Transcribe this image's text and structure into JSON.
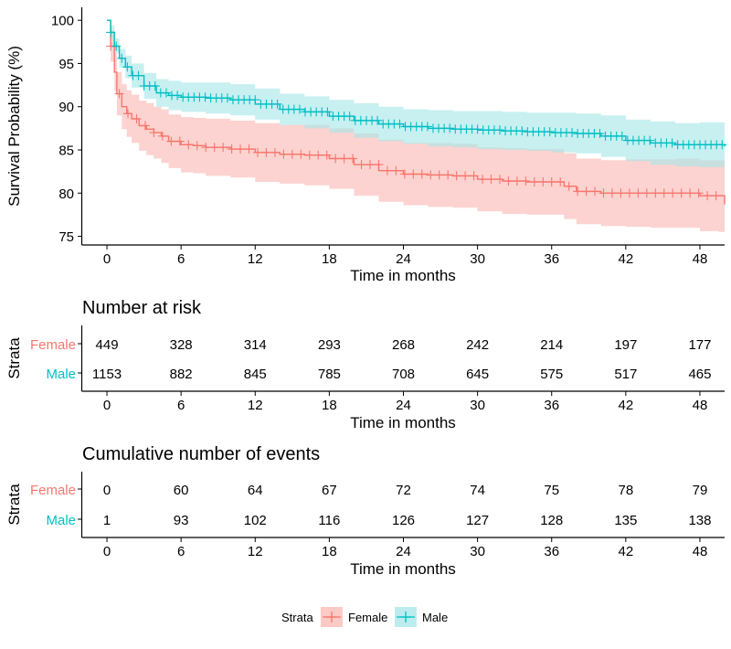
{
  "chart_data": [
    {
      "type": "line",
      "subtype": "kaplan-meier survival curve with confidence bands and censor marks",
      "xlabel": "Time in months",
      "ylabel": "Survival Probability (%)",
      "xlim": [
        -2,
        50
      ],
      "ylim": [
        74,
        101.5
      ],
      "x_ticks": [
        0,
        6,
        12,
        18,
        24,
        30,
        36,
        42,
        48
      ],
      "y_ticks": [
        75,
        80,
        85,
        90,
        95,
        100
      ],
      "grid": false,
      "series": [
        {
          "name": "Female",
          "color": "#F8766D",
          "band_color": "#FAB8B3",
          "x": [
            0,
            0.3,
            0.6,
            0.8,
            1.2,
            1.6,
            2,
            2.6,
            3.2,
            3.8,
            4.4,
            5,
            6,
            7,
            8,
            10,
            12,
            14,
            16,
            18,
            20,
            22,
            24,
            26,
            28,
            30,
            32,
            34,
            36,
            37,
            38,
            40,
            42,
            44,
            46,
            48,
            49.5,
            50
          ],
          "y": [
            100,
            97,
            94,
            91.5,
            90,
            89.2,
            88.6,
            87.8,
            87.4,
            87,
            86.6,
            86,
            85.6,
            85.5,
            85.3,
            85.1,
            84.7,
            84.5,
            84.4,
            84,
            83.3,
            82.6,
            82.2,
            82.1,
            82,
            81.6,
            81.4,
            81.3,
            81.3,
            80.8,
            80.2,
            80,
            80,
            80,
            80,
            79.7,
            79.7,
            78.7
          ],
          "lower": [
            100,
            95.2,
            91.8,
            89,
            87.4,
            86.5,
            85.8,
            84.9,
            84.4,
            84,
            83.5,
            82.9,
            82.4,
            82.3,
            82,
            81.8,
            81.3,
            81.1,
            80.9,
            80.5,
            79.7,
            79,
            78.6,
            78.4,
            78.3,
            77.9,
            77.6,
            77.5,
            77.5,
            77,
            76.4,
            76.2,
            76.1,
            76,
            76,
            75.6,
            75.5,
            74.4
          ],
          "upper": [
            100,
            98.8,
            96.2,
            94,
            92.6,
            91.9,
            91.4,
            90.7,
            90.4,
            90,
            89.7,
            89.1,
            88.8,
            88.7,
            88.6,
            88.4,
            88.1,
            87.9,
            87.9,
            87.5,
            86.9,
            86.2,
            85.8,
            85.8,
            85.7,
            85.3,
            85.2,
            85.1,
            85.1,
            84.6,
            84,
            83.8,
            83.9,
            83.9,
            84,
            83.8,
            83.8,
            83
          ]
        },
        {
          "name": "Male",
          "color": "#00BFC4",
          "band_color": "#A6E6E8",
          "x": [
            0,
            0.3,
            0.6,
            1,
            1.5,
            2,
            3,
            4,
            5,
            6,
            8,
            10,
            12,
            14,
            16,
            18,
            20,
            22,
            24,
            26,
            28,
            30,
            32,
            34,
            36,
            38,
            40,
            42,
            44,
            46,
            48,
            50
          ],
          "y": [
            100,
            98.6,
            97,
            95.6,
            94.6,
            93.6,
            92.4,
            91.6,
            91.3,
            91.1,
            91,
            90.8,
            90.3,
            89.7,
            89.4,
            88.9,
            88.4,
            88,
            87.7,
            87.5,
            87.4,
            87.3,
            87.2,
            87.1,
            87,
            86.9,
            86.6,
            86.1,
            85.8,
            85.6,
            85.6,
            85.4
          ],
          "lower": [
            100,
            97.8,
            96.2,
            94.5,
            93.3,
            92.2,
            90.9,
            90,
            89.6,
            89.4,
            89.2,
            89,
            88.5,
            87.9,
            87.5,
            87,
            86.4,
            86,
            85.7,
            85.4,
            85.3,
            85.1,
            85,
            84.9,
            84.7,
            84.6,
            84.2,
            83.7,
            83.3,
            83.1,
            83,
            82.7
          ],
          "upper": [
            100,
            99.4,
            97.9,
            96.7,
            95.9,
            95,
            93.9,
            93.2,
            93,
            92.8,
            92.8,
            92.6,
            92.1,
            91.5,
            91.2,
            90.8,
            90.4,
            90,
            89.7,
            89.6,
            89.5,
            89.5,
            89.4,
            89.3,
            89.3,
            89.2,
            89,
            88.5,
            88.3,
            88.1,
            88.2,
            88.1
          ]
        }
      ]
    },
    {
      "type": "table",
      "title": "Number at risk",
      "xlabel": "Time in months",
      "ylabel": "Strata",
      "x_ticks": [
        0,
        6,
        12,
        18,
        24,
        30,
        36,
        42,
        48
      ],
      "rows": [
        {
          "name": "Female",
          "color": "#F8766D",
          "values": [
            449,
            328,
            314,
            293,
            268,
            242,
            214,
            197,
            177
          ]
        },
        {
          "name": "Male",
          "color": "#00BFC4",
          "values": [
            1153,
            882,
            845,
            785,
            708,
            645,
            575,
            517,
            465
          ]
        }
      ]
    },
    {
      "type": "table",
      "title": "Cumulative number of events",
      "xlabel": "Time in months",
      "ylabel": "Strata",
      "x_ticks": [
        0,
        6,
        12,
        18,
        24,
        30,
        36,
        42,
        48
      ],
      "rows": [
        {
          "name": "Female",
          "color": "#F8766D",
          "values": [
            0,
            60,
            64,
            67,
            72,
            74,
            75,
            78,
            79
          ]
        },
        {
          "name": "Male",
          "color": "#00BFC4",
          "values": [
            1,
            93,
            102,
            116,
            126,
            127,
            128,
            135,
            138
          ]
        }
      ]
    }
  ],
  "legend": {
    "title": "Strata",
    "position": "bottom",
    "items": [
      "Female",
      "Male"
    ]
  }
}
